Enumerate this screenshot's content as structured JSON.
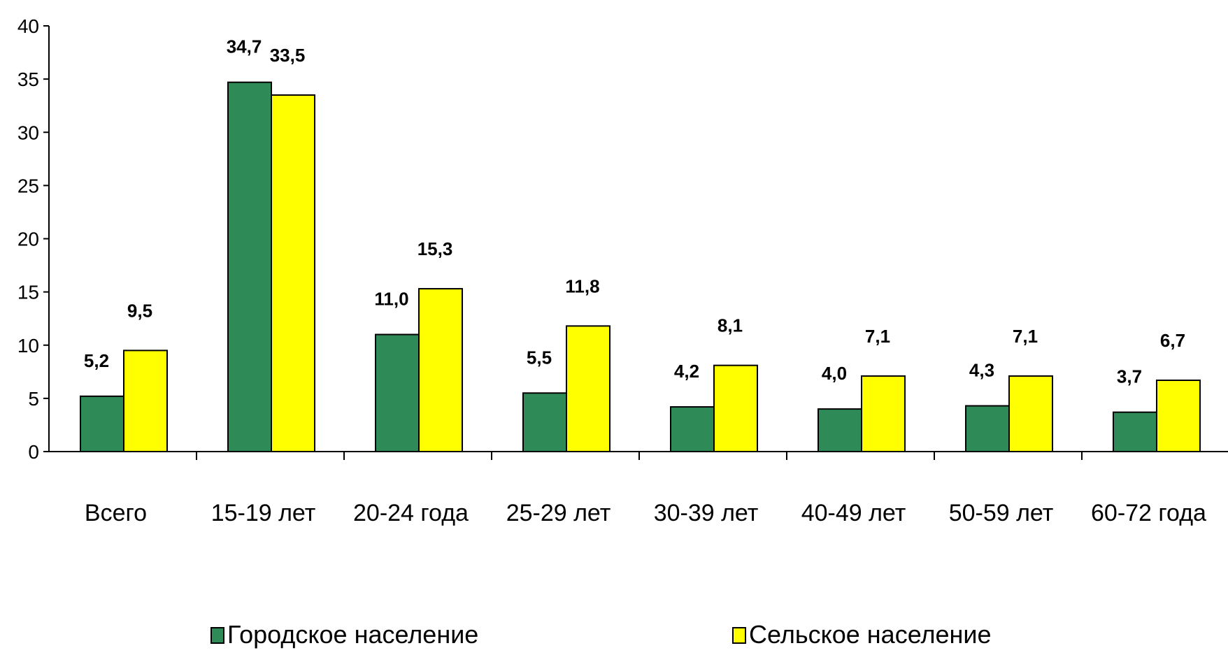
{
  "chart_data": {
    "type": "bar",
    "categories": [
      "Всего",
      "15-19 лет",
      "20-24 года",
      "25-29 лет",
      "30-39 лет",
      "40-49 лет",
      "50-59 лет",
      "60-72 года"
    ],
    "series": [
      {
        "name": "Городское население",
        "color": "#2e8b57",
        "values": [
          5.2,
          34.7,
          11.0,
          5.5,
          4.2,
          4.0,
          4.3,
          3.7
        ],
        "labels": [
          "5,2",
          "34,7",
          "11,0",
          "5,5",
          "4,2",
          "4,0",
          "4,3",
          "3,7"
        ]
      },
      {
        "name": "Сельское население",
        "color": "#ffff00",
        "values": [
          9.5,
          33.5,
          15.3,
          11.8,
          8.1,
          7.1,
          7.1,
          6.7
        ],
        "labels": [
          "9,5",
          "33,5",
          "15,3",
          "11,8",
          "8,1",
          "7,1",
          "7,1",
          "6,7"
        ]
      }
    ],
    "yticks": [
      "0",
      "5",
      "10",
      "15",
      "20",
      "25",
      "30",
      "35",
      "40"
    ],
    "ylim": [
      0,
      40
    ],
    "grid": false,
    "legend_position": "bottom"
  }
}
